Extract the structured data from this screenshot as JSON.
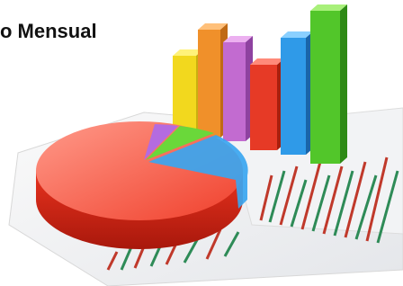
{
  "title": "o Mensual"
}
